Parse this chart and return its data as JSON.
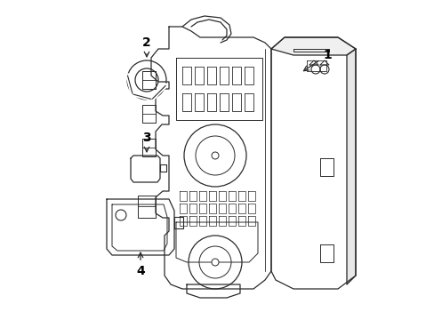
{
  "bg_color": "#ffffff",
  "line_color": "#2a2a2a",
  "label_color": "#000000",
  "lw": 0.9,
  "fig_w": 4.89,
  "fig_h": 3.6,
  "dpi": 100
}
